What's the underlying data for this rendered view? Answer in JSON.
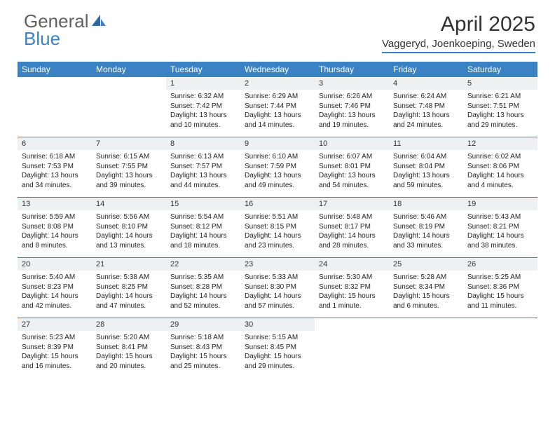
{
  "logo": {
    "text_general": "General",
    "text_blue": "Blue"
  },
  "title": "April 2025",
  "subtitle": "Vaggeryd, Joenkoeping, Sweden",
  "colors": {
    "accent": "#3b82c4",
    "dow_text": "#ffffff",
    "daynum_bg": "#eef0f2",
    "text": "#323232",
    "body_text": "#222222",
    "background": "#ffffff",
    "logo_gray": "#606060"
  },
  "fonts": {
    "title_size_pt": 30,
    "subtitle_size_pt": 15,
    "dow_size_pt": 12,
    "daynum_size_pt": 11,
    "body_size_pt": 10
  },
  "days_of_week": [
    "Sunday",
    "Monday",
    "Tuesday",
    "Wednesday",
    "Thursday",
    "Friday",
    "Saturday"
  ],
  "weeks": [
    [
      null,
      null,
      {
        "n": "1",
        "sr": "Sunrise: 6:32 AM",
        "ss": "Sunset: 7:42 PM",
        "d1": "Daylight: 13 hours",
        "d2": "and 10 minutes."
      },
      {
        "n": "2",
        "sr": "Sunrise: 6:29 AM",
        "ss": "Sunset: 7:44 PM",
        "d1": "Daylight: 13 hours",
        "d2": "and 14 minutes."
      },
      {
        "n": "3",
        "sr": "Sunrise: 6:26 AM",
        "ss": "Sunset: 7:46 PM",
        "d1": "Daylight: 13 hours",
        "d2": "and 19 minutes."
      },
      {
        "n": "4",
        "sr": "Sunrise: 6:24 AM",
        "ss": "Sunset: 7:48 PM",
        "d1": "Daylight: 13 hours",
        "d2": "and 24 minutes."
      },
      {
        "n": "5",
        "sr": "Sunrise: 6:21 AM",
        "ss": "Sunset: 7:51 PM",
        "d1": "Daylight: 13 hours",
        "d2": "and 29 minutes."
      }
    ],
    [
      {
        "n": "6",
        "sr": "Sunrise: 6:18 AM",
        "ss": "Sunset: 7:53 PM",
        "d1": "Daylight: 13 hours",
        "d2": "and 34 minutes."
      },
      {
        "n": "7",
        "sr": "Sunrise: 6:15 AM",
        "ss": "Sunset: 7:55 PM",
        "d1": "Daylight: 13 hours",
        "d2": "and 39 minutes."
      },
      {
        "n": "8",
        "sr": "Sunrise: 6:13 AM",
        "ss": "Sunset: 7:57 PM",
        "d1": "Daylight: 13 hours",
        "d2": "and 44 minutes."
      },
      {
        "n": "9",
        "sr": "Sunrise: 6:10 AM",
        "ss": "Sunset: 7:59 PM",
        "d1": "Daylight: 13 hours",
        "d2": "and 49 minutes."
      },
      {
        "n": "10",
        "sr": "Sunrise: 6:07 AM",
        "ss": "Sunset: 8:01 PM",
        "d1": "Daylight: 13 hours",
        "d2": "and 54 minutes."
      },
      {
        "n": "11",
        "sr": "Sunrise: 6:04 AM",
        "ss": "Sunset: 8:04 PM",
        "d1": "Daylight: 13 hours",
        "d2": "and 59 minutes."
      },
      {
        "n": "12",
        "sr": "Sunrise: 6:02 AM",
        "ss": "Sunset: 8:06 PM",
        "d1": "Daylight: 14 hours",
        "d2": "and 4 minutes."
      }
    ],
    [
      {
        "n": "13",
        "sr": "Sunrise: 5:59 AM",
        "ss": "Sunset: 8:08 PM",
        "d1": "Daylight: 14 hours",
        "d2": "and 8 minutes."
      },
      {
        "n": "14",
        "sr": "Sunrise: 5:56 AM",
        "ss": "Sunset: 8:10 PM",
        "d1": "Daylight: 14 hours",
        "d2": "and 13 minutes."
      },
      {
        "n": "15",
        "sr": "Sunrise: 5:54 AM",
        "ss": "Sunset: 8:12 PM",
        "d1": "Daylight: 14 hours",
        "d2": "and 18 minutes."
      },
      {
        "n": "16",
        "sr": "Sunrise: 5:51 AM",
        "ss": "Sunset: 8:15 PM",
        "d1": "Daylight: 14 hours",
        "d2": "and 23 minutes."
      },
      {
        "n": "17",
        "sr": "Sunrise: 5:48 AM",
        "ss": "Sunset: 8:17 PM",
        "d1": "Daylight: 14 hours",
        "d2": "and 28 minutes."
      },
      {
        "n": "18",
        "sr": "Sunrise: 5:46 AM",
        "ss": "Sunset: 8:19 PM",
        "d1": "Daylight: 14 hours",
        "d2": "and 33 minutes."
      },
      {
        "n": "19",
        "sr": "Sunrise: 5:43 AM",
        "ss": "Sunset: 8:21 PM",
        "d1": "Daylight: 14 hours",
        "d2": "and 38 minutes."
      }
    ],
    [
      {
        "n": "20",
        "sr": "Sunrise: 5:40 AM",
        "ss": "Sunset: 8:23 PM",
        "d1": "Daylight: 14 hours",
        "d2": "and 42 minutes."
      },
      {
        "n": "21",
        "sr": "Sunrise: 5:38 AM",
        "ss": "Sunset: 8:25 PM",
        "d1": "Daylight: 14 hours",
        "d2": "and 47 minutes."
      },
      {
        "n": "22",
        "sr": "Sunrise: 5:35 AM",
        "ss": "Sunset: 8:28 PM",
        "d1": "Daylight: 14 hours",
        "d2": "and 52 minutes."
      },
      {
        "n": "23",
        "sr": "Sunrise: 5:33 AM",
        "ss": "Sunset: 8:30 PM",
        "d1": "Daylight: 14 hours",
        "d2": "and 57 minutes."
      },
      {
        "n": "24",
        "sr": "Sunrise: 5:30 AM",
        "ss": "Sunset: 8:32 PM",
        "d1": "Daylight: 15 hours",
        "d2": "and 1 minute."
      },
      {
        "n": "25",
        "sr": "Sunrise: 5:28 AM",
        "ss": "Sunset: 8:34 PM",
        "d1": "Daylight: 15 hours",
        "d2": "and 6 minutes."
      },
      {
        "n": "26",
        "sr": "Sunrise: 5:25 AM",
        "ss": "Sunset: 8:36 PM",
        "d1": "Daylight: 15 hours",
        "d2": "and 11 minutes."
      }
    ],
    [
      {
        "n": "27",
        "sr": "Sunrise: 5:23 AM",
        "ss": "Sunset: 8:39 PM",
        "d1": "Daylight: 15 hours",
        "d2": "and 16 minutes."
      },
      {
        "n": "28",
        "sr": "Sunrise: 5:20 AM",
        "ss": "Sunset: 8:41 PM",
        "d1": "Daylight: 15 hours",
        "d2": "and 20 minutes."
      },
      {
        "n": "29",
        "sr": "Sunrise: 5:18 AM",
        "ss": "Sunset: 8:43 PM",
        "d1": "Daylight: 15 hours",
        "d2": "and 25 minutes."
      },
      {
        "n": "30",
        "sr": "Sunrise: 5:15 AM",
        "ss": "Sunset: 8:45 PM",
        "d1": "Daylight: 15 hours",
        "d2": "and 29 minutes."
      },
      null,
      null,
      null
    ]
  ]
}
